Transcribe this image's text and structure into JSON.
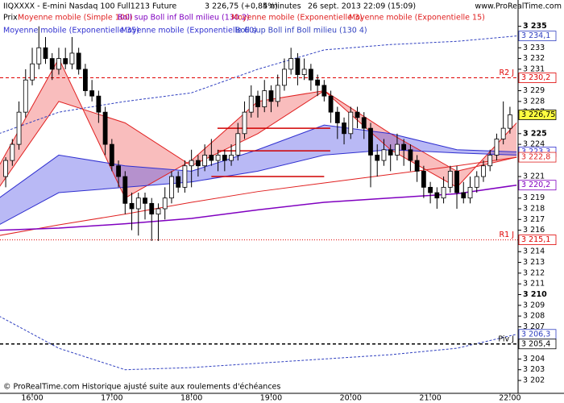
{
  "chart_data": {
    "type": "candlestick",
    "title": "IIQXXXX - E-mini Nasdaq 100 Full1213 Future",
    "header": {
      "last": "3 226,75 (+0,84%)",
      "interval": "5 minutes",
      "date": "26 sept. 2013 22:09 (15:09)",
      "site": "www.ProRealTime.com"
    },
    "footer": "© ProRealTime.com Historique ajusté suite aux roulements d'échéances",
    "price_name": "Prix",
    "up_color": "#ffffff",
    "down_color": "#000000",
    "x": [
      940,
      945,
      950,
      955,
      960,
      965,
      970,
      975,
      980,
      985,
      990,
      995,
      1000,
      1005,
      1010,
      1015,
      1020,
      1025,
      1030,
      1035,
      1040,
      1045,
      1050,
      1055,
      1060,
      1065,
      1070,
      1075,
      1080,
      1085,
      1090,
      1095,
      1100,
      1105,
      1110,
      1115,
      1120,
      1125,
      1130,
      1135,
      1140,
      1145,
      1150,
      1155,
      1160,
      1165,
      1170,
      1175,
      1180,
      1185,
      1190,
      1195,
      1200,
      1205,
      1210,
      1215,
      1220,
      1225,
      1230,
      1235,
      1240,
      1245,
      1250,
      1255,
      1260,
      1265,
      1270,
      1275,
      1280,
      1285,
      1290,
      1295,
      1300,
      1305,
      1310,
      1315,
      1320
    ],
    "open": [
      3221,
      3222.5,
      3224,
      3227,
      3230,
      3231.5,
      3233,
      3232,
      3231,
      3232,
      3231.5,
      3232.5,
      3231,
      3229,
      3228.5,
      3227,
      3224,
      3222,
      3221,
      3218.5,
      3218,
      3219,
      3218.5,
      3217.5,
      3218,
      3219,
      3221,
      3220,
      3222,
      3222.5,
      3222,
      3223,
      3222.5,
      3223,
      3222.5,
      3223,
      3225,
      3227,
      3228.5,
      3227.5,
      3229,
      3228,
      3229.5,
      3231,
      3232,
      3230.5,
      3231,
      3230,
      3229.5,
      3228.5,
      3227,
      3226,
      3225,
      3227,
      3226.5,
      3225.5,
      3223,
      3222.5,
      3223.5,
      3223,
      3224,
      3223.5,
      3222.5,
      3221.5,
      3220,
      3219.5,
      3219,
      3220,
      3221.5,
      3219.5,
      3219,
      3220,
      3221,
      3222,
      3223,
      3224.5,
      3225.5
    ],
    "high": [
      3222.8,
      3224.5,
      3228,
      3231,
      3233,
      3235,
      3234,
      3232.5,
      3233,
      3233,
      3234,
      3233,
      3231.5,
      3230,
      3229,
      3227.5,
      3224.5,
      3222.5,
      3221.5,
      3219.5,
      3219.5,
      3219.5,
      3219,
      3218.5,
      3220,
      3221.5,
      3221.5,
      3222.5,
      3223.5,
      3223,
      3224,
      3224.5,
      3223.5,
      3223.5,
      3224,
      3226,
      3228,
      3229.5,
      3229,
      3230,
      3229.5,
      3230.5,
      3232,
      3233,
      3232.5,
      3232,
      3231.5,
      3230.5,
      3230,
      3229,
      3227.5,
      3226.5,
      3227.5,
      3227.5,
      3227,
      3226,
      3224,
      3224.5,
      3224,
      3225,
      3224.5,
      3224,
      3223,
      3222,
      3220.5,
      3220,
      3221,
      3222,
      3222,
      3220.5,
      3221,
      3221.5,
      3222.5,
      3223.5,
      3225,
      3228,
      3227.5
    ],
    "low": [
      3220,
      3222,
      3223.5,
      3226.5,
      3229.5,
      3231,
      3231.5,
      3230,
      3230.5,
      3231,
      3231,
      3230.5,
      3228.5,
      3228,
      3226,
      3223,
      3221.5,
      3220,
      3217.5,
      3216,
      3215.5,
      3217,
      3215,
      3215,
      3217,
      3218.5,
      3219.5,
      3219.5,
      3220,
      3221,
      3221.5,
      3222,
      3221.5,
      3221.5,
      3222,
      3222.5,
      3224.5,
      3226.5,
      3226.5,
      3227,
      3227,
      3227.5,
      3229,
      3230.5,
      3229.5,
      3230,
      3229,
      3228.5,
      3228,
      3226,
      3224.5,
      3224,
      3224.5,
      3225.5,
      3224.5,
      3220,
      3221,
      3222,
      3221.5,
      3222.5,
      3222,
      3221.5,
      3220.5,
      3219,
      3218.5,
      3218,
      3218.5,
      3219.5,
      3218,
      3218.5,
      3218.5,
      3219.5,
      3220.5,
      3221.5,
      3222.5,
      3224,
      3225
    ],
    "close": [
      3222.5,
      3224,
      3227,
      3230,
      3231.5,
      3233,
      3232,
      3231,
      3232,
      3231.5,
      3232.5,
      3231,
      3229,
      3228.5,
      3227,
      3224,
      3222,
      3221,
      3218.5,
      3218,
      3219,
      3218.5,
      3217.5,
      3218,
      3219,
      3221,
      3220,
      3222,
      3222.5,
      3222,
      3223,
      3222.5,
      3223,
      3222.5,
      3223,
      3225,
      3227,
      3228.5,
      3227.5,
      3229,
      3228,
      3229.5,
      3231,
      3232,
      3230.5,
      3231,
      3230,
      3229.5,
      3228.5,
      3227,
      3226,
      3225,
      3227,
      3226.5,
      3225.5,
      3223,
      3222.5,
      3223.5,
      3223,
      3224,
      3223.5,
      3222.5,
      3221.5,
      3220,
      3219.5,
      3219,
      3220,
      3221.5,
      3219.5,
      3219,
      3220,
      3221,
      3222,
      3223,
      3224.5,
      3225.5,
      3226.75
    ],
    "indicators": [
      {
        "name": "Moyenne mobile (Simple 100)",
        "color": "#e02020",
        "x": [
          935,
          980,
          1030,
          1080,
          1130,
          1180,
          1230,
          1280,
          1325
        ],
        "values": [
          3215.5,
          3216.5,
          3217.5,
          3218.6,
          3219.6,
          3220.4,
          3221.2,
          3222,
          3222.8
        ]
      },
      {
        "name": "Moyenne mobile (Exponentielle 3)",
        "color": "#e02020",
        "fill": "rgba(240,90,90,0.4)",
        "x": [
          935,
          980,
          1030,
          1080,
          1130,
          1180,
          1230,
          1280,
          1325
        ],
        "values": [
          3222,
          3232,
          3219,
          3222.5,
          3228,
          3229,
          3223.5,
          3220,
          3226
        ]
      },
      {
        "name": "Moyenne mobile (Exponentielle 15)",
        "color": "#e02020",
        "x": [
          935,
          980,
          1030,
          1080,
          1130,
          1180,
          1230,
          1280,
          1325
        ],
        "values": [
          3220,
          3228,
          3226,
          3222,
          3225,
          3229,
          3225,
          3221.5,
          3222.8
        ]
      },
      {
        "name": "Moyenne mobile (Exponentielle 35)",
        "color": "#3030d0",
        "fill": "rgba(80,80,230,0.4)",
        "x": [
          935,
          980,
          1030,
          1080,
          1130,
          1180,
          1230,
          1280,
          1325
        ],
        "values": [
          3219,
          3223,
          3222,
          3221.5,
          3223.5,
          3225.8,
          3225,
          3223.5,
          3223.3
        ]
      },
      {
        "name": "Moyenne mobile (Exponentielle 60)",
        "color": "#3030d0",
        "x": [
          935,
          980,
          1030,
          1080,
          1130,
          1180,
          1230,
          1280,
          1325
        ],
        "values": [
          3216.5,
          3219.5,
          3220,
          3220.5,
          3221.5,
          3223,
          3223.5,
          3223.2,
          3223
        ]
      }
    ],
    "bollinger": [
      {
        "name": "Boll sup Boll inf Boll milieu (130 2)",
        "color": "#8000c0",
        "x": [
          935,
          980,
          1030,
          1080,
          1130,
          1180,
          1230,
          1280,
          1325
        ],
        "middle": [
          3216,
          3216.2,
          3216.6,
          3217.1,
          3217.9,
          3218.6,
          3219,
          3219.4,
          3220.2
        ]
      },
      {
        "name": "Boll sup Boll inf Boll milieu (130 4)",
        "color": "#3040c0",
        "dashed": true,
        "x": [
          935,
          980,
          1030,
          1080,
          1130,
          1180,
          1230,
          1280,
          1325
        ],
        "upper": [
          3225,
          3227,
          3228,
          3228.8,
          3231,
          3232.8,
          3233.3,
          3233.6,
          3234.1
        ],
        "lower": [
          3208,
          3205,
          3203,
          3203.2,
          3203.6,
          3204,
          3204.4,
          3205,
          3206.3
        ]
      }
    ],
    "levels": [
      {
        "name": "R2 J",
        "value": 3230.2,
        "color": "#e00000",
        "style": "dashed"
      },
      {
        "name": "R1 J",
        "value": 3215.1,
        "color": "#e00000",
        "style": "dotted"
      },
      {
        "name": "Piv J",
        "value": 3205.4,
        "color": "#000000",
        "style": "dashed"
      }
    ],
    "drawn_lines": [
      {
        "value": 3225.5,
        "x": [
          1099.6,
          1184.6
        ],
        "color": "#d00000"
      },
      {
        "value": 3223.4,
        "x": [
          1099.6,
          1184.6
        ],
        "color": "#d00000"
      },
      {
        "value": 3221,
        "x": [
          1095,
          1180
        ],
        "color": "#d00000"
      }
    ],
    "price_tags": [
      {
        "value": 3234.1,
        "label": "3 234,1",
        "color": "#3040c0"
      },
      {
        "value": 3230.2,
        "label": "3 230,2",
        "color": "#e00000"
      },
      {
        "value": 3226.75,
        "label": "3 226,75",
        "color": "#000000",
        "background": "#ffff40"
      },
      {
        "value": 3223.3,
        "label": "3 223,3",
        "color": "#3030d0"
      },
      {
        "value": 3222.8,
        "label": "3 222,8",
        "color": "#e02020"
      },
      {
        "value": 3220.2,
        "label": "3 220,2",
        "color": "#8000c0"
      },
      {
        "value": 3215.1,
        "label": "3 215,1",
        "color": "#e00000"
      },
      {
        "value": 3206.3,
        "label": "3 206,3",
        "color": "#3040c0"
      },
      {
        "value": 3205.4,
        "label": "3 205,4",
        "color": "#000000"
      }
    ],
    "xlim": [
      935.7,
      1324.3
    ],
    "xticks": [
      {
        "value": 960,
        "label": "16:00"
      },
      {
        "value": 1020,
        "label": "17:00"
      },
      {
        "value": 1080,
        "label": "18:00"
      },
      {
        "value": 1140,
        "label": "19:00"
      },
      {
        "value": 1200,
        "label": "20:00"
      },
      {
        "value": 1260,
        "label": "21:00"
      },
      {
        "value": 1320,
        "label": "22:00"
      }
    ],
    "ylim": [
      3200.8,
      3236.4
    ],
    "yticks": [
      {
        "value": 3235,
        "label": "3 235"
      },
      {
        "value": 3233,
        "label": "3 233"
      },
      {
        "value": 3232,
        "label": "3 232"
      },
      {
        "value": 3231,
        "label": "3 231"
      },
      {
        "value": 3229,
        "label": "3 229"
      },
      {
        "value": 3228,
        "label": "3 228"
      },
      {
        "value": 3227,
        "label": "3 227"
      },
      {
        "value": 3225,
        "label": "3 225"
      },
      {
        "value": 3224,
        "label": "3 224"
      },
      {
        "value": 3221,
        "label": "3 221"
      },
      {
        "value": 3219,
        "label": "3 219"
      },
      {
        "value": 3218,
        "label": "3 218"
      },
      {
        "value": 3217,
        "label": "3 217"
      },
      {
        "value": 3216,
        "label": "3 216"
      },
      {
        "value": 3214,
        "label": "3 214"
      },
      {
        "value": 3213,
        "label": "3 213"
      },
      {
        "value": 3212,
        "label": "3 212"
      },
      {
        "value": 3211,
        "label": "3 211"
      },
      {
        "value": 3210,
        "label": "3 210"
      },
      {
        "value": 3209,
        "label": "3 209"
      },
      {
        "value": 3208,
        "label": "3 208"
      },
      {
        "value": 3207,
        "label": "3 207"
      },
      {
        "value": 3204,
        "label": "3 204"
      },
      {
        "value": 3203,
        "label": "3 203"
      },
      {
        "value": 3202,
        "label": "3 202"
      }
    ]
  }
}
